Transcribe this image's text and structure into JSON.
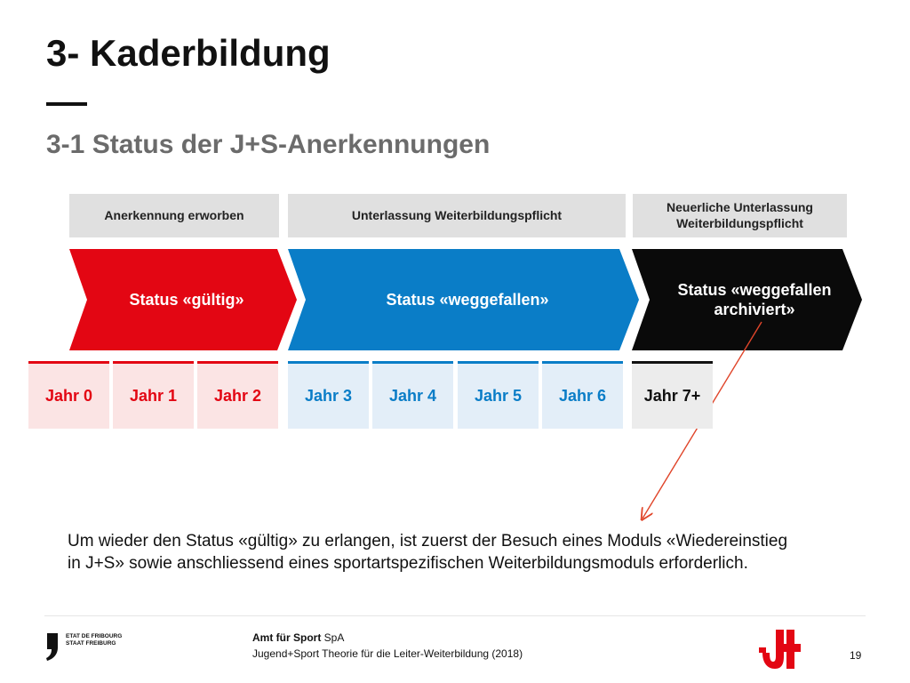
{
  "slide": {
    "title": "3- Kaderbildung",
    "subtitle": "3-1 Status der J+S-Anerkennungen"
  },
  "headers": [
    {
      "label": "Anerkennung erworben"
    },
    {
      "label": "Unterlassung Weiterbildungspflicht"
    },
    {
      "label": "Neuerliche Unterlassung Weiterbildungspflicht"
    }
  ],
  "statuses": [
    {
      "label": "Status «gültig»",
      "color": "#e30613"
    },
    {
      "label": "Status «weggefallen»",
      "color": "#0a7dc7"
    },
    {
      "label": "Status «weggefallen archiviert»",
      "color": "#0a0a0a"
    }
  ],
  "years": [
    {
      "label": "Jahr 0",
      "group": "red"
    },
    {
      "label": "Jahr 1",
      "group": "red"
    },
    {
      "label": "Jahr 2",
      "group": "red"
    },
    {
      "label": "Jahr 3",
      "group": "blue"
    },
    {
      "label": "Jahr 4",
      "group": "blue"
    },
    {
      "label": "Jahr 5",
      "group": "blue"
    },
    {
      "label": "Jahr 6",
      "group": "blue"
    },
    {
      "label": "Jahr 7+",
      "group": "black"
    }
  ],
  "note": "Um wieder den Status «gültig» zu erlangen, ist zuerst der Besuch eines Moduls «Wiedereinstieg in J+S» sowie anschliessend eines sportartspezifischen Weiterbildungsmoduls erforderlich.",
  "footer": {
    "org_bold": "Amt für Sport",
    "org_suffix": "SpA",
    "course": "Jugend+Sport Theorie für die Leiter-Weiterbildung (2018)",
    "page_number": "19",
    "canton_fr": "ETAT DE FRIBOURG",
    "canton_de": "STAAT FREIBURG"
  },
  "colors": {
    "red": "#e30613",
    "blue": "#0a7dc7",
    "black": "#0a0a0a",
    "pointer_arrow": "#e0452a"
  }
}
